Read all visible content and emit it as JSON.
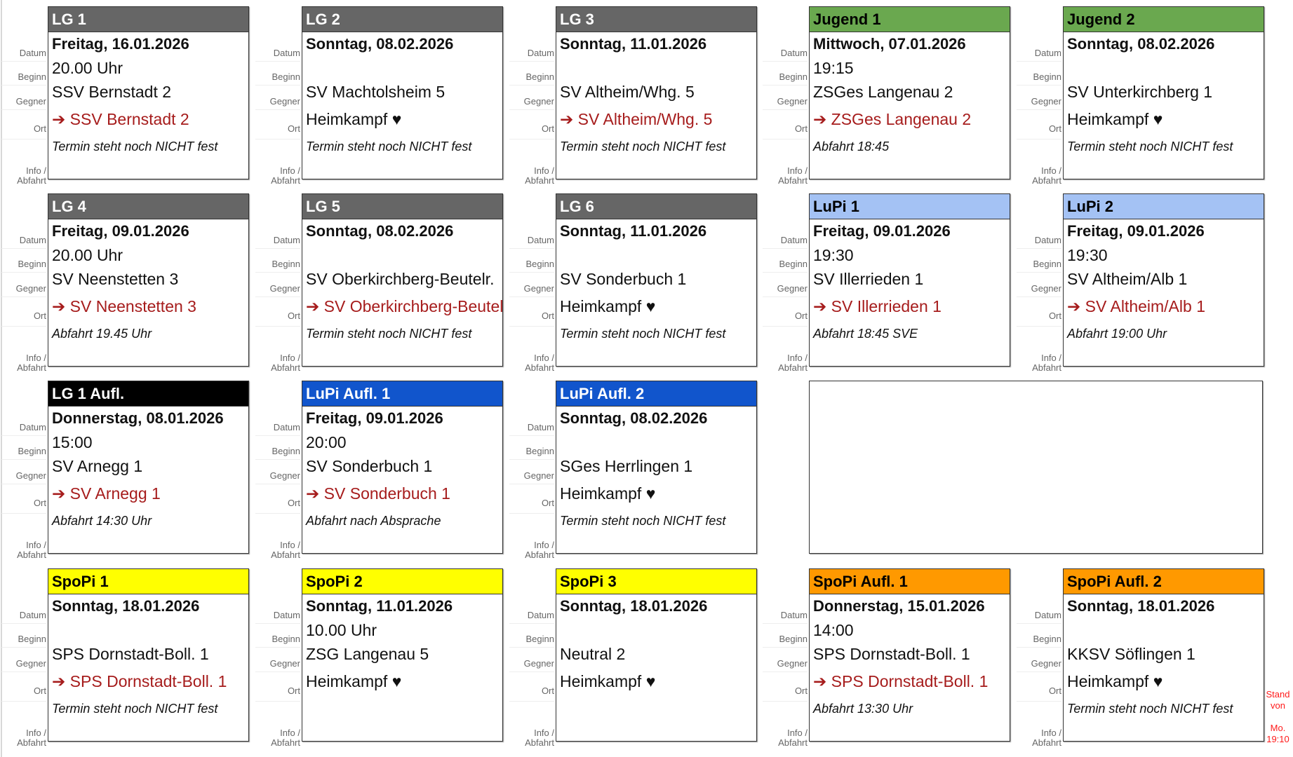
{
  "labels": {
    "datum": "Datum",
    "beginn": "Beginn",
    "gegner": "Gegner",
    "ort": "Ort",
    "info1": "Info /",
    "info2": "Abfahrt"
  },
  "arrow": "➔",
  "heart": "♥",
  "cards": [
    {
      "team": "LG 1",
      "color": "#666666",
      "text_color": "#ffffff",
      "datum": "Freitag, 16.01.2026",
      "beginn": "20.00 Uhr",
      "gegner": "SSV Bernstadt 2",
      "ort": "SSV Bernstadt 2",
      "away": true,
      "info": "Termin steht noch NICHT fest"
    },
    {
      "team": "LG 2",
      "color": "#666666",
      "text_color": "#ffffff",
      "datum": "Sonntag, 08.02.2026",
      "beginn": "",
      "gegner": "SV Machtolsheim 5",
      "ort": "Heimkampf ♥",
      "away": false,
      "info": "Termin steht noch NICHT fest"
    },
    {
      "team": "LG 3",
      "color": "#666666",
      "text_color": "#ffffff",
      "datum": "Sonntag, 11.01.2026",
      "beginn": "",
      "gegner": "SV Altheim/Whg. 5",
      "ort": "SV Altheim/Whg. 5",
      "away": true,
      "info": "Termin steht noch NICHT fest"
    },
    {
      "team": "Jugend 1",
      "color": "#6aa84f",
      "text_color": "#000000",
      "datum": "Mittwoch, 07.01.2026",
      "beginn": "19:15",
      "gegner": "ZSGes Langenau 2",
      "ort": "ZSGes Langenau 2",
      "away": true,
      "info": "Abfahrt 18:45"
    },
    {
      "team": "Jugend 2",
      "color": "#6aa84f",
      "text_color": "#000000",
      "datum": "Sonntag, 08.02.2026",
      "beginn": "",
      "gegner": "SV Unterkirchberg 1",
      "ort": "Heimkampf ♥",
      "away": false,
      "info": "Termin steht noch NICHT fest"
    },
    {
      "team": "LG 4",
      "color": "#666666",
      "text_color": "#ffffff",
      "datum": "Freitag, 09.01.2026",
      "beginn": "20.00 Uhr",
      "gegner": "SV Neenstetten 3",
      "ort": "SV Neenstetten 3",
      "away": true,
      "info": "Abfahrt 19.45 Uhr"
    },
    {
      "team": "LG 5",
      "color": "#666666",
      "text_color": "#ffffff",
      "datum": "Sonntag, 08.02.2026",
      "beginn": "",
      "gegner": "SV Oberkirchberg-Beutelr.",
      "ort": "SV Oberkirchberg-Beutelr.",
      "away": true,
      "info": "Termin steht noch NICHT fest"
    },
    {
      "team": "LG 6",
      "color": "#666666",
      "text_color": "#ffffff",
      "datum": "Sonntag, 11.01.2026",
      "beginn": "",
      "gegner": "SV Sonderbuch 1",
      "ort": "Heimkampf ♥",
      "away": false,
      "info": "Termin steht noch NICHT fest"
    },
    {
      "team": "LuPi 1",
      "color": "#a4c2f4",
      "text_color": "#000000",
      "datum": "Freitag, 09.01.2026",
      "beginn": "19:30",
      "gegner": "SV Illerrieden 1",
      "ort": "SV Illerrieden 1",
      "away": true,
      "info": "Abfahrt 18:45 SVE"
    },
    {
      "team": "LuPi 2",
      "color": "#a4c2f4",
      "text_color": "#000000",
      "datum": "Freitag, 09.01.2026",
      "beginn": "19:30",
      "gegner": "SV Altheim/Alb 1",
      "ort": "SV Altheim/Alb 1",
      "away": true,
      "info": "Abfahrt 19:00 Uhr"
    },
    {
      "team": "LG 1 Aufl.",
      "color": "#000000",
      "text_color": "#ffffff",
      "datum": "Donnerstag, 08.01.2026",
      "beginn": "15:00",
      "gegner": "SV Arnegg 1",
      "ort": "SV Arnegg 1",
      "away": true,
      "info": "Abfahrt 14:30 Uhr"
    },
    {
      "team": "LuPi Aufl. 1",
      "color": "#1155cc",
      "text_color": "#ffffff",
      "datum": "Freitag, 09.01.2026",
      "beginn": "20:00",
      "gegner": "SV Sonderbuch 1",
      "ort": "SV Sonderbuch 1",
      "away": true,
      "info": "Abfahrt nach Absprache"
    },
    {
      "team": "LuPi Aufl. 2",
      "color": "#1155cc",
      "text_color": "#ffffff",
      "datum": "Sonntag, 08.02.2026",
      "beginn": "",
      "gegner": "SGes Herrlingen 1",
      "ort": "Heimkampf ♥",
      "away": false,
      "info": "Termin steht noch NICHT fest"
    },
    null,
    null,
    {
      "team": "SpoPi 1",
      "color": "#ffff00",
      "text_color": "#000000",
      "datum": "Sonntag, 18.01.2026",
      "beginn": "",
      "gegner": "SPS Dornstadt-Boll. 1",
      "ort": "SPS Dornstadt-Boll. 1",
      "away": true,
      "info": "Termin steht noch NICHT fest"
    },
    {
      "team": "SpoPi 2",
      "color": "#ffff00",
      "text_color": "#000000",
      "datum": "Sonntag, 11.01.2026",
      "beginn": "10.00 Uhr",
      "gegner": "ZSG Langenau 5",
      "ort": "Heimkampf ♥",
      "away": false,
      "info": ""
    },
    {
      "team": "SpoPi 3",
      "color": "#ffff00",
      "text_color": "#000000",
      "datum": "Sonntag, 18.01.2026",
      "beginn": "",
      "gegner": "Neutral 2",
      "ort": "Heimkampf ♥",
      "away": false,
      "info": ""
    },
    {
      "team": "SpoPi Aufl. 1",
      "color": "#ff9900",
      "text_color": "#000000",
      "datum": "Donnerstag, 15.01.2026",
      "beginn": "14:00",
      "gegner": "SPS Dornstadt-Boll. 1",
      "ort": "SPS Dornstadt-Boll. 1",
      "away": true,
      "info": "Abfahrt 13:30 Uhr"
    },
    {
      "team": "SpoPi Aufl. 2",
      "color": "#ff9900",
      "text_color": "#000000",
      "datum": "Sonntag, 18.01.2026",
      "beginn": "",
      "gegner": "KKSV Söflingen 1",
      "ort": "Heimkampf ♥",
      "away": false,
      "info": "Termin steht noch NICHT fest"
    }
  ],
  "stand": {
    "line1": "Stand",
    "line2": "von",
    "line3": "Mo.",
    "line4": "19:10"
  }
}
